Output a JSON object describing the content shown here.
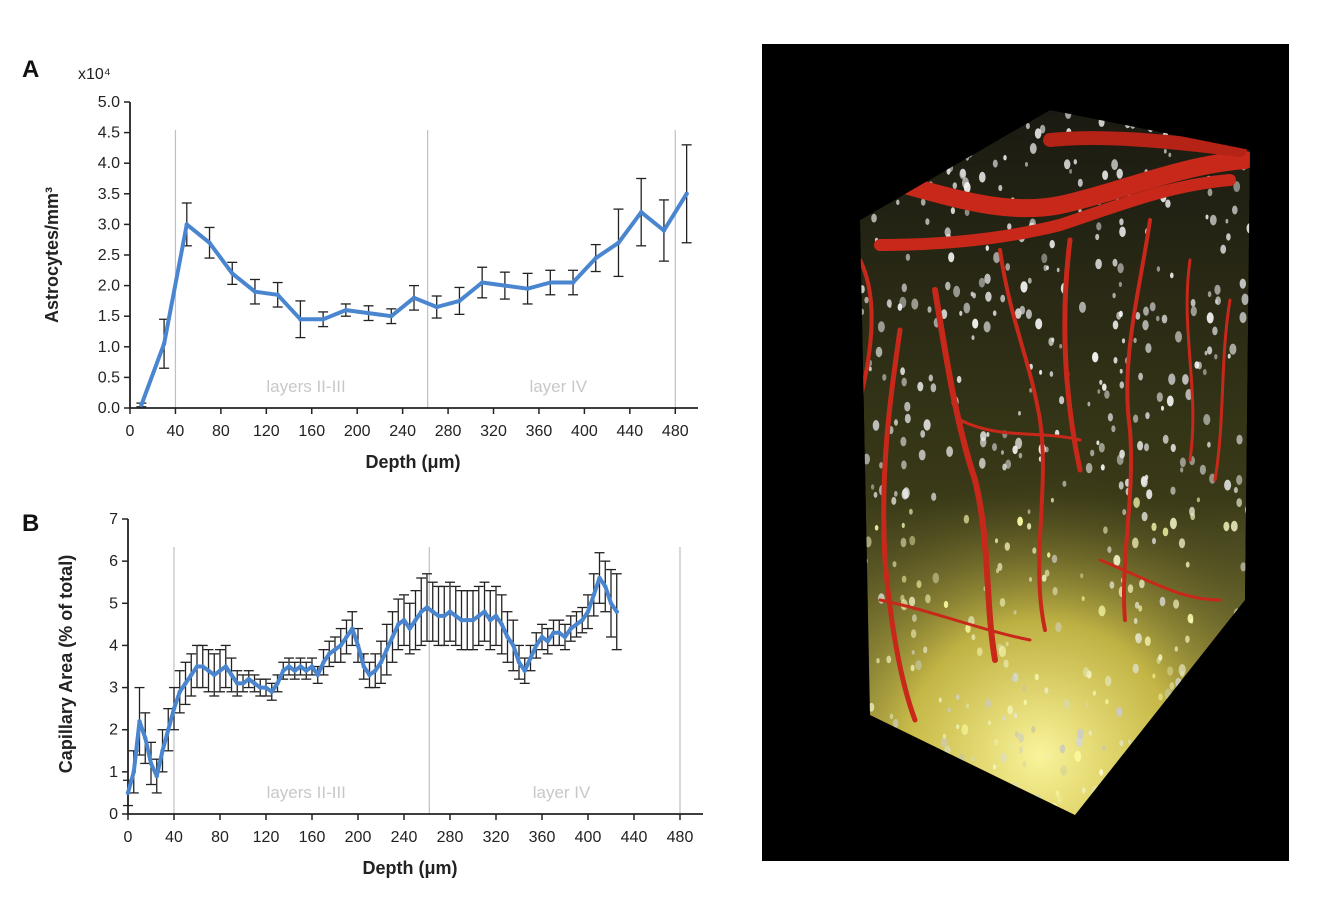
{
  "colors": {
    "series": "#4a86d0",
    "error": "#222222",
    "divider": "#c0c0c0",
    "image_bg": "#000000"
  },
  "chart_data": [
    {
      "panel": "A",
      "type": "line",
      "xlabel": "Depth (μm)",
      "ylabel": "Astrocytes/mm³",
      "y_multiplier": "x10⁴",
      "xlim": [
        0,
        500
      ],
      "ylim": [
        0,
        5.0
      ],
      "x_ticks": [
        0,
        40,
        80,
        120,
        160,
        200,
        240,
        280,
        320,
        360,
        400,
        440,
        480
      ],
      "y_ticks": [
        "0.0",
        "0.5",
        "1.0",
        "1.5",
        "2.0",
        "2.5",
        "3.0",
        "3.5",
        "4.0",
        "4.5",
        "5.0"
      ],
      "dividers": [
        40,
        262,
        480
      ],
      "regions": [
        {
          "label": "layers II-III",
          "x": 155
        },
        {
          "label": "layer IV",
          "x": 377
        }
      ],
      "x": [
        10,
        30,
        50,
        70,
        90,
        110,
        130,
        150,
        170,
        190,
        210,
        230,
        250,
        270,
        290,
        310,
        330,
        350,
        370,
        390,
        410,
        430,
        450,
        470,
        490
      ],
      "y": [
        0.05,
        1.05,
        3.0,
        2.7,
        2.2,
        1.9,
        1.85,
        1.45,
        1.45,
        1.6,
        1.55,
        1.5,
        1.8,
        1.65,
        1.75,
        2.05,
        2.0,
        1.95,
        2.05,
        2.05,
        2.45,
        2.7,
        3.2,
        2.9,
        3.5
      ],
      "err": [
        0.03,
        0.4,
        0.35,
        0.25,
        0.18,
        0.2,
        0.2,
        0.3,
        0.12,
        0.1,
        0.12,
        0.12,
        0.2,
        0.18,
        0.22,
        0.25,
        0.22,
        0.25,
        0.2,
        0.2,
        0.22,
        0.55,
        0.55,
        0.5,
        0.8
      ]
    },
    {
      "panel": "B",
      "type": "line",
      "xlabel": "Depth (μm)",
      "ylabel": "Capillary Area (% of total)",
      "xlim": [
        0,
        500
      ],
      "ylim": [
        0,
        7
      ],
      "x_ticks": [
        0,
        40,
        80,
        120,
        160,
        200,
        240,
        280,
        320,
        360,
        400,
        440,
        480
      ],
      "y_ticks": [
        "0",
        "1",
        "2",
        "3",
        "4",
        "5",
        "6",
        "7"
      ],
      "dividers": [
        40,
        262,
        480
      ],
      "regions": [
        {
          "label": "layers II-III",
          "x": 155
        },
        {
          "label": "layer IV",
          "x": 377
        }
      ],
      "x_start": 0,
      "x_step": 5,
      "y": [
        0.5,
        1.0,
        2.2,
        1.8,
        1.2,
        0.9,
        1.5,
        2.0,
        2.5,
        2.9,
        3.1,
        3.3,
        3.5,
        3.5,
        3.4,
        3.3,
        3.4,
        3.5,
        3.3,
        3.1,
        3.1,
        3.2,
        3.1,
        3.0,
        3.0,
        2.9,
        3.1,
        3.4,
        3.5,
        3.4,
        3.5,
        3.4,
        3.5,
        3.3,
        3.6,
        3.8,
        3.9,
        4.0,
        4.2,
        4.4,
        4.0,
        3.5,
        3.3,
        3.4,
        3.6,
        3.9,
        4.2,
        4.5,
        4.6,
        4.4,
        4.6,
        4.8,
        4.9,
        4.8,
        4.7,
        4.7,
        4.8,
        4.7,
        4.6,
        4.6,
        4.6,
        4.7,
        4.8,
        4.6,
        4.7,
        4.5,
        4.2,
        4.0,
        3.6,
        3.4,
        3.7,
        4.0,
        4.2,
        4.1,
        4.3,
        4.3,
        4.2,
        4.4,
        4.5,
        4.6,
        4.8,
        5.2,
        5.6,
        5.4,
        5.0,
        4.8
      ],
      "err": [
        0.3,
        0.5,
        0.8,
        0.6,
        0.5,
        0.4,
        0.5,
        0.5,
        0.5,
        0.5,
        0.5,
        0.5,
        0.5,
        0.5,
        0.5,
        0.5,
        0.5,
        0.5,
        0.4,
        0.3,
        0.2,
        0.2,
        0.2,
        0.2,
        0.2,
        0.2,
        0.2,
        0.2,
        0.2,
        0.2,
        0.2,
        0.2,
        0.2,
        0.2,
        0.3,
        0.3,
        0.3,
        0.4,
        0.4,
        0.4,
        0.4,
        0.3,
        0.3,
        0.4,
        0.5,
        0.6,
        0.6,
        0.6,
        0.6,
        0.6,
        0.7,
        0.8,
        0.8,
        0.7,
        0.7,
        0.7,
        0.7,
        0.7,
        0.7,
        0.7,
        0.7,
        0.7,
        0.7,
        0.7,
        0.7,
        0.7,
        0.6,
        0.6,
        0.4,
        0.3,
        0.3,
        0.3,
        0.3,
        0.3,
        0.3,
        0.3,
        0.3,
        0.3,
        0.3,
        0.3,
        0.4,
        0.5,
        0.6,
        0.6,
        0.8,
        0.9
      ]
    }
  ]
}
